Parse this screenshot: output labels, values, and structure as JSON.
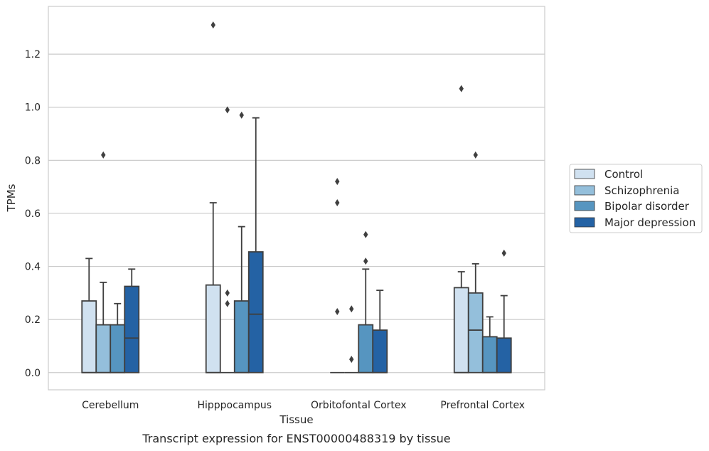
{
  "chart_data": {
    "type": "box",
    "caption": "Transcript expression for ENST00000488319 by tissue",
    "xlabel": "Tissue",
    "ylabel": "TPMs",
    "ylim": [
      -0.065,
      1.38
    ],
    "yticks": [
      0.0,
      0.2,
      0.4,
      0.6,
      0.8,
      1.0,
      1.2
    ],
    "ytick_labels": [
      "0.0",
      "0.2",
      "0.4",
      "0.6",
      "0.8",
      "1.0",
      "1.2"
    ],
    "grid": "horizontal",
    "legend_position": "right",
    "categories": [
      "Cerebellum",
      "Hipppocampus",
      "Orbitofontal Cortex",
      "Prefrontal Cortex"
    ],
    "series": [
      {
        "name": "Control",
        "color": "#d0e1f0",
        "boxes": [
          {
            "whislo": 0.0,
            "q1": 0.0,
            "med": 0.0,
            "q3": 0.27,
            "whishi": 0.43,
            "fliers": []
          },
          {
            "whislo": 0.0,
            "q1": 0.0,
            "med": 0.0,
            "q3": 0.33,
            "whishi": 0.64,
            "fliers": [
              1.31
            ]
          },
          {
            "whislo": 0.0,
            "q1": 0.0,
            "med": 0.0,
            "q3": 0.0,
            "whishi": 0.0,
            "fliers": [
              0.72,
              0.64,
              0.23
            ]
          },
          {
            "whislo": 0.0,
            "q1": 0.0,
            "med": 0.0,
            "q3": 0.32,
            "whishi": 0.38,
            "fliers": [
              1.07
            ]
          }
        ]
      },
      {
        "name": "Schizophrenia",
        "color": "#94bfdb",
        "boxes": [
          {
            "whislo": 0.0,
            "q1": 0.0,
            "med": 0.0,
            "q3": 0.18,
            "whishi": 0.34,
            "fliers": [
              0.82
            ]
          },
          {
            "whislo": 0.0,
            "q1": 0.0,
            "med": 0.0,
            "q3": 0.0,
            "whishi": 0.0,
            "fliers": [
              0.99,
              0.3,
              0.26
            ]
          },
          {
            "whislo": 0.0,
            "q1": 0.0,
            "med": 0.0,
            "q3": 0.0,
            "whishi": 0.0,
            "fliers": [
              0.24,
              0.05
            ]
          },
          {
            "whislo": 0.0,
            "q1": 0.0,
            "med": 0.16,
            "q3": 0.3,
            "whishi": 0.41,
            "fliers": [
              0.82
            ]
          }
        ]
      },
      {
        "name": "Bipolar disorder",
        "color": "#5695c0",
        "boxes": [
          {
            "whislo": 0.0,
            "q1": 0.0,
            "med": 0.0,
            "q3": 0.18,
            "whishi": 0.26,
            "fliers": []
          },
          {
            "whislo": 0.0,
            "q1": 0.0,
            "med": 0.0,
            "q3": 0.27,
            "whishi": 0.55,
            "fliers": [
              0.97
            ]
          },
          {
            "whislo": 0.0,
            "q1": 0.0,
            "med": 0.0,
            "q3": 0.18,
            "whishi": 0.39,
            "fliers": [
              0.52,
              0.42
            ]
          },
          {
            "whislo": 0.0,
            "q1": 0.0,
            "med": 0.0,
            "q3": 0.135,
            "whishi": 0.21,
            "fliers": []
          }
        ]
      },
      {
        "name": "Major depression",
        "color": "#2462a4",
        "boxes": [
          {
            "whislo": 0.0,
            "q1": 0.0,
            "med": 0.13,
            "q3": 0.325,
            "whishi": 0.39,
            "fliers": []
          },
          {
            "whislo": 0.0,
            "q1": 0.0,
            "med": 0.22,
            "q3": 0.455,
            "whishi": 0.96,
            "fliers": []
          },
          {
            "whislo": 0.0,
            "q1": 0.0,
            "med": 0.0,
            "q3": 0.16,
            "whishi": 0.31,
            "fliers": []
          },
          {
            "whislo": 0.0,
            "q1": 0.0,
            "med": 0.0,
            "q3": 0.13,
            "whishi": 0.29,
            "fliers": [
              0.45
            ]
          }
        ]
      }
    ]
  }
}
